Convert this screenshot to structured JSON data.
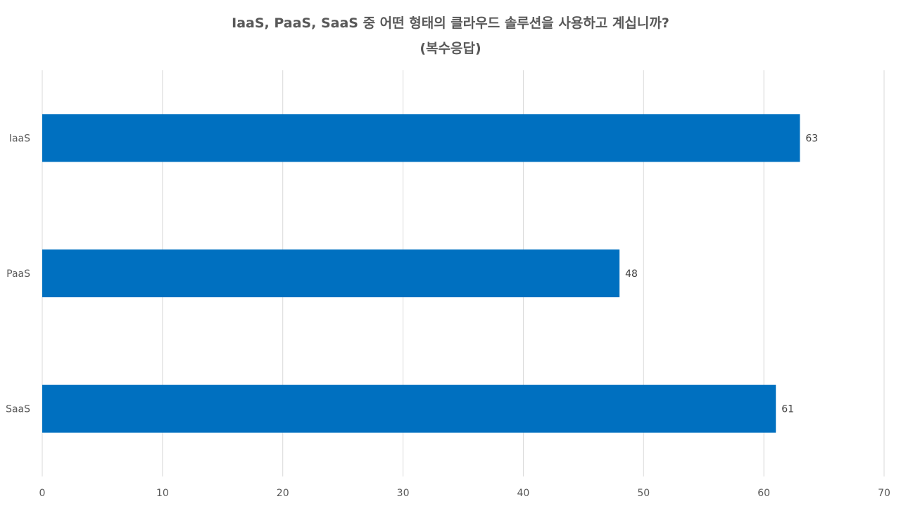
{
  "chart_data": {
    "type": "bar",
    "orientation": "horizontal",
    "title_line1": "IaaS, PaaS, SaaS 중 어떤 형태의 클라우드 솔루션을 사용하고 계십니까?",
    "title_line2": "(복수응답)",
    "categories": [
      "IaaS",
      "PaaS",
      "SaaS"
    ],
    "values": [
      63,
      48,
      61
    ],
    "xlim": [
      0,
      70
    ],
    "xticks": [
      0,
      10,
      20,
      30,
      40,
      50,
      60,
      70
    ],
    "grid": true,
    "bar_color": "#0070C0",
    "grid_color": "#D9D9D9",
    "xlabel": "",
    "ylabel": ""
  }
}
